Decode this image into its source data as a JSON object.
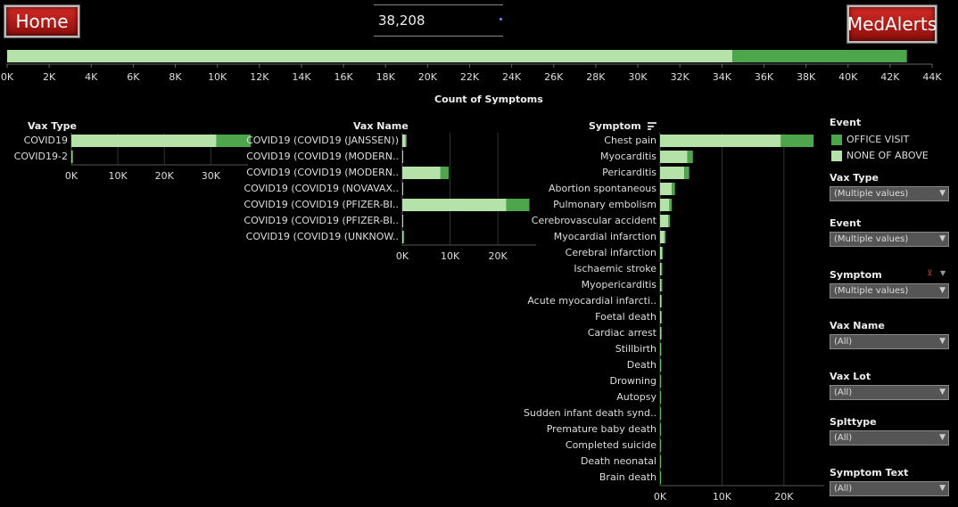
{
  "nav": {
    "home_label": "Home",
    "medalerts_label": "MedAlerts"
  },
  "kpi": {
    "total": "38,208"
  },
  "colors": {
    "office_visit": "#4ea64c",
    "none_of_above": "#b5e2a8"
  },
  "top_chart": {
    "axis_label": "Count of Symptoms",
    "ticks": [
      "0K",
      "2K",
      "4K",
      "6K",
      "8K",
      "10K",
      "12K",
      "14K",
      "16K",
      "18K",
      "20K",
      "22K",
      "24K",
      "26K",
      "28K",
      "30K",
      "32K",
      "34K",
      "36K",
      "38K",
      "40K",
      "42K",
      "44K"
    ]
  },
  "legend": {
    "title": "Event",
    "items": [
      {
        "label": "OFFICE VISIT"
      },
      {
        "label": "NONE OF ABOVE"
      }
    ]
  },
  "filters": [
    {
      "label": "Vax Type",
      "value": "(Multiple values)"
    },
    {
      "label": "Event",
      "value": "(Multiple values)"
    },
    {
      "label": "Symptom",
      "value": "(Multiple values)"
    },
    {
      "label": "Vax Name",
      "value": "(All)"
    },
    {
      "label": "Vax Lot",
      "value": "(All)"
    },
    {
      "label": "Splttype",
      "value": "(All)"
    },
    {
      "label": "Symptom Text",
      "value": "(All)"
    }
  ],
  "chart_data": [
    {
      "type": "bar",
      "orientation": "horizontal",
      "stacked": true,
      "xlabel": "Count of Symptoms",
      "xlim": [
        0,
        44000
      ],
      "categories": [
        "Total"
      ],
      "series": [
        {
          "name": "NONE OF ABOVE",
          "values": [
            34500
          ]
        },
        {
          "name": "OFFICE VISIT",
          "values": [
            8300
          ]
        }
      ]
    },
    {
      "type": "bar",
      "orientation": "horizontal",
      "stacked": true,
      "ylabel": "Vax Type",
      "xlim": [
        0,
        38000
      ],
      "ticks": [
        "0K",
        "10K",
        "20K",
        "30K"
      ],
      "categories": [
        "COVID19",
        "COVID19-2"
      ],
      "series": [
        {
          "name": "NONE OF ABOVE",
          "values": [
            31200,
            150
          ]
        },
        {
          "name": "OFFICE VISIT",
          "values": [
            7400,
            50
          ]
        }
      ]
    },
    {
      "type": "bar",
      "orientation": "horizontal",
      "stacked": true,
      "ylabel": "Vax Name",
      "xlim": [
        0,
        28000
      ],
      "ticks": [
        "0K",
        "10K",
        "20K"
      ],
      "categories": [
        "COVID19 (COVID19 (JANSSEN))",
        "COVID19 (COVID19 (MODERN..",
        "COVID19 (COVID19 (MODERN..",
        "COVID19 (COVID19 (NOVAVAX..",
        "COVID19 (COVID19 (PFIZER-BI..",
        "COVID19 (COVID19 (PFIZER-BI..",
        "COVID19 (COVID19 (UNKNOW.."
      ],
      "series": [
        {
          "name": "NONE OF ABOVE",
          "values": [
            700,
            100,
            8000,
            100,
            21800,
            100,
            200
          ]
        },
        {
          "name": "OFFICE VISIT",
          "values": [
            200,
            0,
            1700,
            0,
            4800,
            0,
            50
          ]
        }
      ]
    },
    {
      "type": "bar",
      "orientation": "horizontal",
      "stacked": true,
      "ylabel": "Symptom",
      "xlim": [
        0,
        26500
      ],
      "ticks": [
        "0K",
        "10K",
        "20K"
      ],
      "categories": [
        "Chest pain",
        "Myocarditis",
        "Pericarditis",
        "Abortion spontaneous",
        "Pulmonary embolism",
        "Cerebrovascular accident",
        "Myocardial infarction",
        "Cerebral infarction",
        "Ischaemic stroke",
        "Myopericarditis",
        "Acute myocardial infarcti..",
        "Foetal death",
        "Cardiac arrest",
        "Stillbirth",
        "Death",
        "Drowning",
        "Autopsy",
        "Sudden infant death synd..",
        "Premature baby death",
        "Completed suicide",
        "Death neonatal",
        "Brain death"
      ],
      "series": [
        {
          "name": "NONE OF ABOVE",
          "values": [
            19500,
            4400,
            3900,
            1900,
            1500,
            1300,
            700,
            300,
            200,
            200,
            150,
            150,
            120,
            60,
            50,
            40,
            30,
            30,
            30,
            30,
            30,
            30
          ]
        },
        {
          "name": "OFFICE VISIT",
          "values": [
            5300,
            900,
            800,
            500,
            400,
            300,
            200,
            50,
            50,
            50,
            50,
            50,
            50,
            20,
            20,
            10,
            10,
            10,
            10,
            10,
            10,
            10
          ]
        }
      ]
    }
  ]
}
